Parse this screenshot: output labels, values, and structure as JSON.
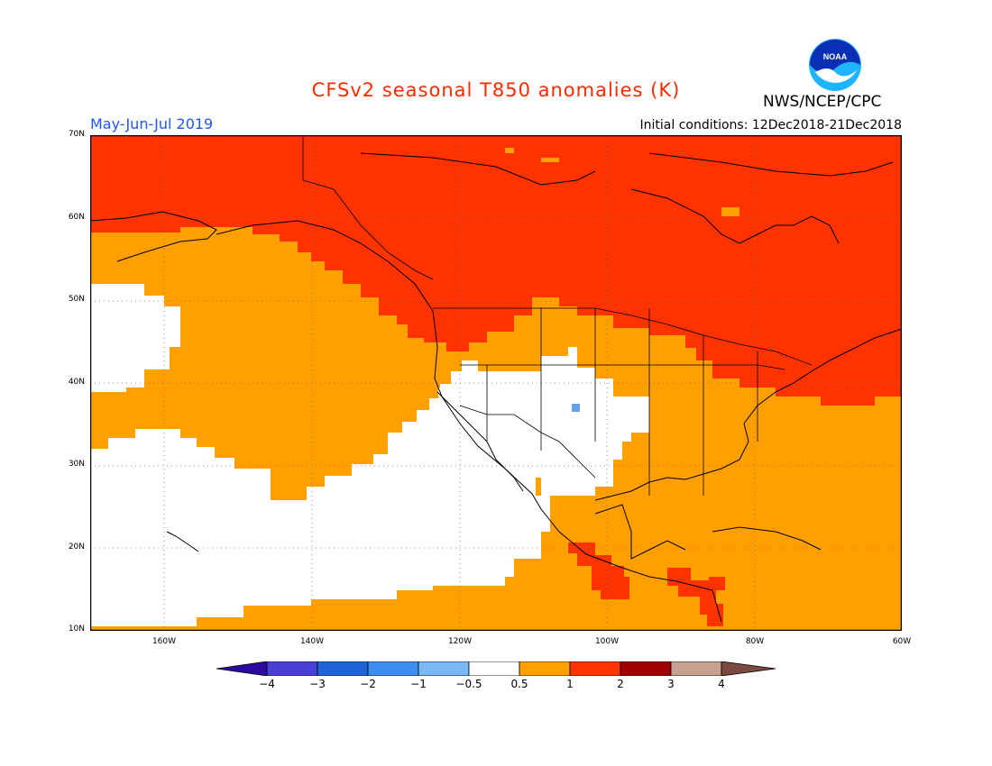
{
  "title": "CFSv2 seasonal T850 anomalies (K)",
  "agency": "NWS/NCEP/CPC",
  "logo_text": "NOAA",
  "period": "May-Jun-Jul 2019",
  "initial_conditions": "Initial conditions: 12Dec2018-21Dec2018",
  "lat_labels": [
    "70N",
    "60N",
    "50N",
    "40N",
    "30N",
    "20N",
    "10N"
  ],
  "lon_labels": [
    "160W",
    "140W",
    "120W",
    "100W",
    "80W",
    "60W"
  ],
  "colorbar": {
    "labels": [
      "−4",
      "−3",
      "−2",
      "−1",
      "−0.5",
      "0.5",
      "1",
      "2",
      "3",
      "4"
    ],
    "colors": [
      "#2a0aa0",
      "#4b3fd8",
      "#1e64d8",
      "#3c8ff0",
      "#7ab8f5",
      "#ffffff",
      "#ffa000",
      "#ff3300",
      "#a00000",
      "#c8a090",
      "#7a4a40"
    ]
  },
  "map_colors": {
    "white": "#ffffff",
    "orange": "#ffa000",
    "red": "#ff3300",
    "blue": "#6aa0e8"
  }
}
